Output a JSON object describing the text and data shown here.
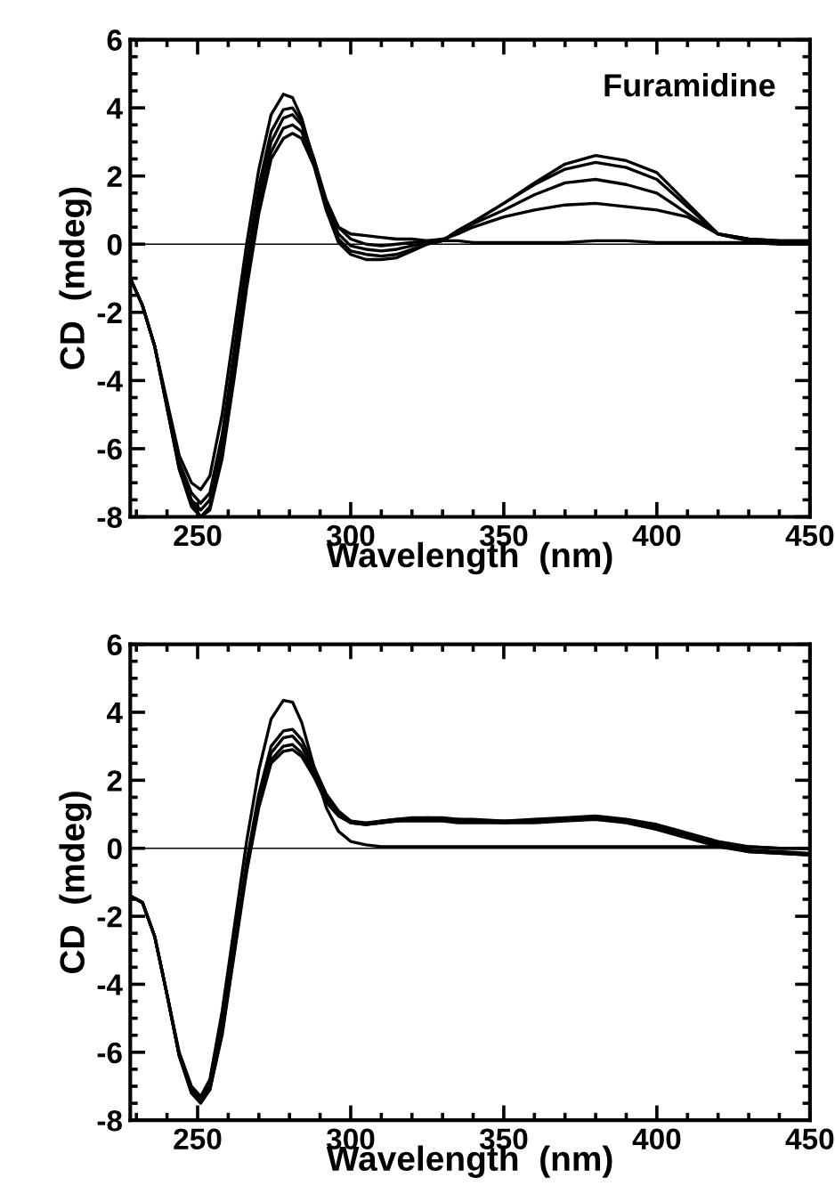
{
  "chart_data": [
    {
      "type": "line",
      "title": "Furamidine",
      "xlabel": "Wavelength  (nm)",
      "ylabel": "CD  (mdeg)",
      "x": [
        228,
        232,
        236,
        240,
        244,
        248,
        251,
        254,
        258,
        262,
        266,
        270,
        274,
        278,
        281,
        284,
        288,
        292,
        296,
        300,
        305,
        310,
        315,
        320,
        325,
        330,
        335,
        340,
        350,
        360,
        370,
        380,
        390,
        400,
        410,
        420,
        430,
        440,
        450
      ],
      "series": [
        {
          "color": "#000000",
          "values": [
            -1.0,
            -1.8,
            -3.0,
            -4.6,
            -6.2,
            -7.0,
            -7.2,
            -6.8,
            -5.0,
            -2.5,
            0.0,
            2.2,
            3.8,
            4.4,
            4.3,
            3.7,
            2.4,
            1.2,
            0.5,
            0.3,
            0.25,
            0.2,
            0.15,
            0.15,
            0.1,
            0.1,
            0.1,
            0.05,
            0.05,
            0.05,
            0.05,
            0.1,
            0.1,
            0.05,
            0.05,
            0.05,
            0.05,
            0.0,
            0.0
          ]
        },
        {
          "color": "#000000",
          "values": [
            -1.0,
            -1.8,
            -3.0,
            -4.7,
            -6.4,
            -7.3,
            -7.6,
            -7.3,
            -5.6,
            -3.1,
            -0.5,
            1.7,
            3.3,
            3.95,
            4.0,
            3.6,
            2.5,
            1.3,
            0.5,
            0.15,
            0.0,
            -0.05,
            0.0,
            0.05,
            0.1,
            0.15,
            0.3,
            0.5,
            0.8,
            1.0,
            1.15,
            1.2,
            1.1,
            1.0,
            0.8,
            0.3,
            0.15,
            0.1,
            0.1
          ]
        },
        {
          "color": "#000000",
          "values": [
            -1.0,
            -1.8,
            -3.0,
            -4.7,
            -6.5,
            -7.5,
            -7.8,
            -7.5,
            -5.9,
            -3.4,
            -0.8,
            1.4,
            3.0,
            3.7,
            3.8,
            3.5,
            2.5,
            1.2,
            0.3,
            -0.05,
            -0.15,
            -0.2,
            -0.15,
            -0.05,
            0.05,
            0.1,
            0.35,
            0.6,
            1.0,
            1.45,
            1.8,
            1.9,
            1.75,
            1.5,
            0.9,
            0.3,
            0.15,
            0.1,
            0.1
          ]
        },
        {
          "color": "#000000",
          "values": [
            -1.0,
            -1.8,
            -3.0,
            -4.8,
            -6.6,
            -7.6,
            -8.0,
            -7.7,
            -6.1,
            -3.7,
            -1.1,
            1.1,
            2.7,
            3.4,
            3.5,
            3.3,
            2.4,
            1.1,
            0.15,
            -0.2,
            -0.3,
            -0.35,
            -0.3,
            -0.15,
            0.0,
            0.1,
            0.4,
            0.65,
            1.2,
            1.75,
            2.2,
            2.4,
            2.25,
            1.9,
            1.1,
            0.3,
            0.1,
            0.05,
            0.05
          ]
        },
        {
          "color": "#000000",
          "values": [
            -1.0,
            -1.8,
            -3.0,
            -4.8,
            -6.6,
            -7.7,
            -8.0,
            -7.8,
            -6.3,
            -3.9,
            -1.3,
            0.9,
            2.5,
            3.1,
            3.25,
            3.1,
            2.3,
            1.0,
            0.05,
            -0.3,
            -0.45,
            -0.45,
            -0.4,
            -0.2,
            0.0,
            0.1,
            0.4,
            0.65,
            1.2,
            1.8,
            2.35,
            2.6,
            2.45,
            2.1,
            1.2,
            0.3,
            0.1,
            0.05,
            0.0
          ]
        }
      ],
      "xlim": [
        228,
        450
      ],
      "xticks": [
        250,
        300,
        350,
        400,
        450
      ],
      "ylim": [
        -8,
        6
      ],
      "yticks": [
        -8,
        -6,
        -4,
        -2,
        0,
        2,
        4,
        6
      ],
      "ref_lines": [
        {
          "axis": "y",
          "value": 0,
          "color": "#000000"
        }
      ],
      "grid": false,
      "legend": false
    },
    {
      "type": "line",
      "xlabel": "Wavelength  (nm)",
      "ylabel": "CD  (mdeg)",
      "x": [
        228,
        232,
        236,
        240,
        244,
        248,
        251,
        254,
        258,
        262,
        266,
        270,
        274,
        278,
        281,
        284,
        288,
        292,
        296,
        300,
        305,
        310,
        315,
        320,
        325,
        330,
        335,
        340,
        350,
        360,
        370,
        380,
        390,
        400,
        410,
        420,
        430,
        440,
        450
      ],
      "series": [
        {
          "color": "#000000",
          "values": [
            -1.4,
            -1.6,
            -2.6,
            -4.3,
            -6.0,
            -7.0,
            -7.3,
            -6.8,
            -4.8,
            -2.3,
            0.2,
            2.3,
            3.8,
            4.35,
            4.3,
            3.7,
            2.4,
            1.2,
            0.5,
            0.2,
            0.1,
            0.05,
            0.05,
            0.05,
            0.05,
            0.05,
            0.05,
            0.05,
            0.05,
            0.05,
            0.05,
            0.05,
            0.05,
            0.05,
            0.05,
            0.05,
            0.05,
            0.0,
            0.0
          ]
        },
        {
          "color": "#000000",
          "values": [
            -1.4,
            -1.6,
            -2.6,
            -4.3,
            -6.1,
            -7.1,
            -7.4,
            -7.0,
            -5.2,
            -2.8,
            -0.4,
            1.6,
            3.0,
            3.45,
            3.5,
            3.2,
            2.4,
            1.6,
            1.1,
            0.8,
            0.75,
            0.8,
            0.85,
            0.9,
            0.9,
            0.9,
            0.85,
            0.85,
            0.8,
            0.85,
            0.9,
            0.95,
            0.85,
            0.7,
            0.45,
            0.2,
            0.05,
            0.0,
            0.0
          ]
        },
        {
          "color": "#000000",
          "values": [
            -1.4,
            -1.6,
            -2.6,
            -4.3,
            -6.1,
            -7.1,
            -7.4,
            -7.0,
            -5.3,
            -2.9,
            -0.5,
            1.5,
            2.8,
            3.25,
            3.3,
            3.0,
            2.3,
            1.5,
            1.05,
            0.8,
            0.7,
            0.8,
            0.85,
            0.85,
            0.9,
            0.85,
            0.85,
            0.8,
            0.8,
            0.8,
            0.85,
            0.9,
            0.8,
            0.65,
            0.4,
            0.15,
            -0.05,
            -0.1,
            -0.15
          ]
        },
        {
          "color": "#000000",
          "values": [
            -1.4,
            -1.6,
            -2.6,
            -4.3,
            -6.1,
            -7.2,
            -7.45,
            -7.1,
            -5.4,
            -3.0,
            -0.6,
            1.3,
            2.6,
            3.0,
            3.05,
            2.8,
            2.2,
            1.4,
            1.0,
            0.75,
            0.7,
            0.75,
            0.8,
            0.85,
            0.85,
            0.85,
            0.8,
            0.8,
            0.75,
            0.8,
            0.85,
            0.85,
            0.8,
            0.6,
            0.35,
            0.1,
            -0.1,
            -0.15,
            -0.2
          ]
        },
        {
          "color": "#000000",
          "values": [
            -1.4,
            -1.6,
            -2.6,
            -4.3,
            -6.1,
            -7.2,
            -7.5,
            -7.1,
            -5.5,
            -3.1,
            -0.7,
            1.2,
            2.5,
            2.85,
            2.9,
            2.7,
            2.1,
            1.35,
            0.95,
            0.75,
            0.7,
            0.75,
            0.8,
            0.8,
            0.8,
            0.8,
            0.75,
            0.75,
            0.75,
            0.75,
            0.8,
            0.85,
            0.75,
            0.55,
            0.3,
            0.05,
            -0.1,
            -0.15,
            -0.2
          ]
        }
      ],
      "xlim": [
        228,
        450
      ],
      "xticks": [
        250,
        300,
        350,
        400,
        450
      ],
      "ylim": [
        -8,
        6
      ],
      "yticks": [
        -8,
        -6,
        -4,
        -2,
        0,
        2,
        4,
        6
      ],
      "ref_lines": [
        {
          "axis": "y",
          "value": 0,
          "color": "#000000"
        }
      ],
      "grid": false,
      "legend": false
    }
  ]
}
